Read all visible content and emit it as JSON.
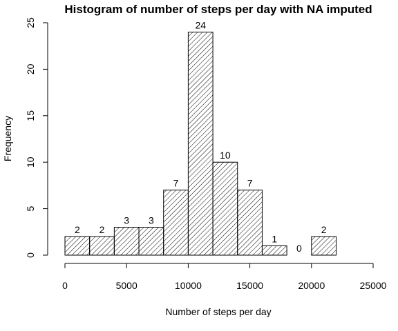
{
  "chart_data": {
    "type": "bar",
    "title": "Histogram of number of steps per day with NA imputed",
    "xlabel": "Number of steps per day",
    "ylabel": "Frequency",
    "bins": [
      {
        "start": 0,
        "end": 2000,
        "count": 2
      },
      {
        "start": 2000,
        "end": 4000,
        "count": 2
      },
      {
        "start": 4000,
        "end": 6000,
        "count": 3
      },
      {
        "start": 6000,
        "end": 8000,
        "count": 3
      },
      {
        "start": 8000,
        "end": 10000,
        "count": 7
      },
      {
        "start": 10000,
        "end": 12000,
        "count": 24
      },
      {
        "start": 12000,
        "end": 14000,
        "count": 10
      },
      {
        "start": 14000,
        "end": 16000,
        "count": 7
      },
      {
        "start": 16000,
        "end": 18000,
        "count": 1
      },
      {
        "start": 18000,
        "end": 20000,
        "count": 0
      },
      {
        "start": 20000,
        "end": 22000,
        "count": 2
      }
    ],
    "xlim": [
      0,
      25000
    ],
    "ylim": [
      0,
      25
    ],
    "xticks": [
      0,
      5000,
      10000,
      15000,
      20000,
      25000
    ],
    "yticks": [
      0,
      5,
      10,
      15,
      20,
      25
    ],
    "bar_fill": "diagonal-hatch",
    "bar_color": "#000000",
    "grid": false,
    "legend": "none"
  }
}
